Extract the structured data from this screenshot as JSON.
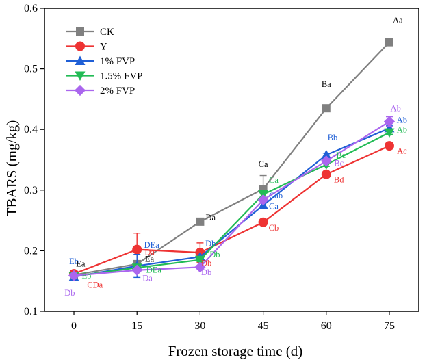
{
  "chart_data": {
    "type": "line",
    "xlabel": "Frozen storage time (d)",
    "ylabel": "TBARS (mg/kg)",
    "x": [
      0,
      15,
      30,
      45,
      60,
      75
    ],
    "xlim": [
      -7,
      82
    ],
    "ylim": [
      0.1,
      0.6
    ],
    "x_ticks": [
      0,
      15,
      30,
      45,
      60,
      75
    ],
    "y_ticks": [
      0.1,
      0.2,
      0.3,
      0.4,
      0.5,
      0.6
    ],
    "x_tick_labels": [
      "0",
      "15",
      "30",
      "45",
      "60",
      "75"
    ],
    "y_tick_labels": [
      "0.1",
      "0.2",
      "0.3",
      "0.4",
      "0.5",
      "0.6"
    ],
    "grid": false,
    "legend_position": "top-left",
    "series": [
      {
        "name": "CK",
        "color": "#808080",
        "marker": "square",
        "values": [
          0.16,
          0.178,
          0.248,
          0.302,
          0.435,
          0.544
        ],
        "errors": [
          0.004,
          0.003,
          0.003,
          0.022,
          0.003,
          0.003
        ]
      },
      {
        "name": "Y",
        "color": "#ee3333",
        "marker": "circle",
        "values": [
          0.162,
          0.202,
          0.197,
          0.247,
          0.326,
          0.373
        ],
        "errors": [
          0.003,
          0.027,
          0.016,
          0.003,
          0.003,
          0.003
        ]
      },
      {
        "name": "1% FVP",
        "color": "#1f5fd6",
        "marker": "triangle-up",
        "values": [
          0.157,
          0.175,
          0.19,
          0.275,
          0.358,
          0.402
        ],
        "errors": [
          0.003,
          0.019,
          0.003,
          0.006,
          0.003,
          0.004
        ]
      },
      {
        "name": "1.5% FVP",
        "color": "#22bb55",
        "marker": "triangle-down",
        "values": [
          0.158,
          0.172,
          0.185,
          0.293,
          0.342,
          0.395
        ],
        "errors": [
          0.003,
          0.003,
          0.003,
          0.003,
          0.003,
          0.003
        ]
      },
      {
        "name": "2% FVP",
        "color": "#aa66ee",
        "marker": "diamond",
        "values": [
          0.159,
          0.168,
          0.173,
          0.284,
          0.348,
          0.413
        ],
        "errors": [
          0.003,
          0.003,
          0.003,
          0.003,
          0.003,
          0.008
        ]
      }
    ],
    "annotations": [
      {
        "text": "Eb",
        "x": 0,
        "y": 0.178,
        "color": "#1f5fd6"
      },
      {
        "text": "Ea",
        "x": 1.6,
        "y": 0.174,
        "color": "#000000"
      },
      {
        "text": "Eb",
        "x": 3,
        "y": 0.154,
        "color": "#22bb55"
      },
      {
        "text": "CDa",
        "x": 5,
        "y": 0.139,
        "color": "#ee3333"
      },
      {
        "text": "Db",
        "x": -1,
        "y": 0.126,
        "color": "#aa66ee"
      },
      {
        "text": "Ea",
        "x": 18,
        "y": 0.182,
        "color": "#000000"
      },
      {
        "text": "DEa",
        "x": 18.5,
        "y": 0.205,
        "color": "#1f5fd6"
      },
      {
        "text": "Da",
        "x": 18,
        "y": 0.193,
        "color": "#ee3333"
      },
      {
        "text": "DEa",
        "x": 19,
        "y": 0.164,
        "color": "#22bb55"
      },
      {
        "text": "Da",
        "x": 17.5,
        "y": 0.15,
        "color": "#aa66ee"
      },
      {
        "text": "Da",
        "x": 32.5,
        "y": 0.25,
        "color": "#000000"
      },
      {
        "text": "Db",
        "x": 32.5,
        "y": 0.207,
        "color": "#1f5fd6"
      },
      {
        "text": "Db",
        "x": 33.5,
        "y": 0.189,
        "color": "#22bb55"
      },
      {
        "text": "Db",
        "x": 31.5,
        "y": 0.175,
        "color": "#ee3333"
      },
      {
        "text": "Db",
        "x": 31.5,
        "y": 0.16,
        "color": "#aa66ee"
      },
      {
        "text": "Ca",
        "x": 45,
        "y": 0.338,
        "color": "#000000"
      },
      {
        "text": "Ca",
        "x": 47.5,
        "y": 0.312,
        "color": "#22bb55"
      },
      {
        "text": "Cab",
        "x": 48,
        "y": 0.286,
        "color": "#1f5fd6"
      },
      {
        "text": "Ca",
        "x": 47.5,
        "y": 0.269,
        "color": "#1f5fd6"
      },
      {
        "text": "Cb",
        "x": 47.5,
        "y": 0.233,
        "color": "#ee3333"
      },
      {
        "text": "Ba",
        "x": 60,
        "y": 0.47,
        "color": "#000000"
      },
      {
        "text": "Bb",
        "x": 61.5,
        "y": 0.382,
        "color": "#1f5fd6"
      },
      {
        "text": "Bc",
        "x": 63.5,
        "y": 0.353,
        "color": "#22bb55"
      },
      {
        "text": "Bc",
        "x": 63,
        "y": 0.34,
        "color": "#aa66ee"
      },
      {
        "text": "Bd",
        "x": 63,
        "y": 0.313,
        "color": "#ee3333"
      },
      {
        "text": "Aa",
        "x": 77,
        "y": 0.576,
        "color": "#000000"
      },
      {
        "text": "Ab",
        "x": 76.5,
        "y": 0.43,
        "color": "#aa66ee"
      },
      {
        "text": "Ab",
        "x": 78,
        "y": 0.411,
        "color": "#1f5fd6"
      },
      {
        "text": "Ab",
        "x": 78,
        "y": 0.395,
        "color": "#22bb55"
      },
      {
        "text": "Ac",
        "x": 78,
        "y": 0.36,
        "color": "#ee3333"
      }
    ]
  }
}
